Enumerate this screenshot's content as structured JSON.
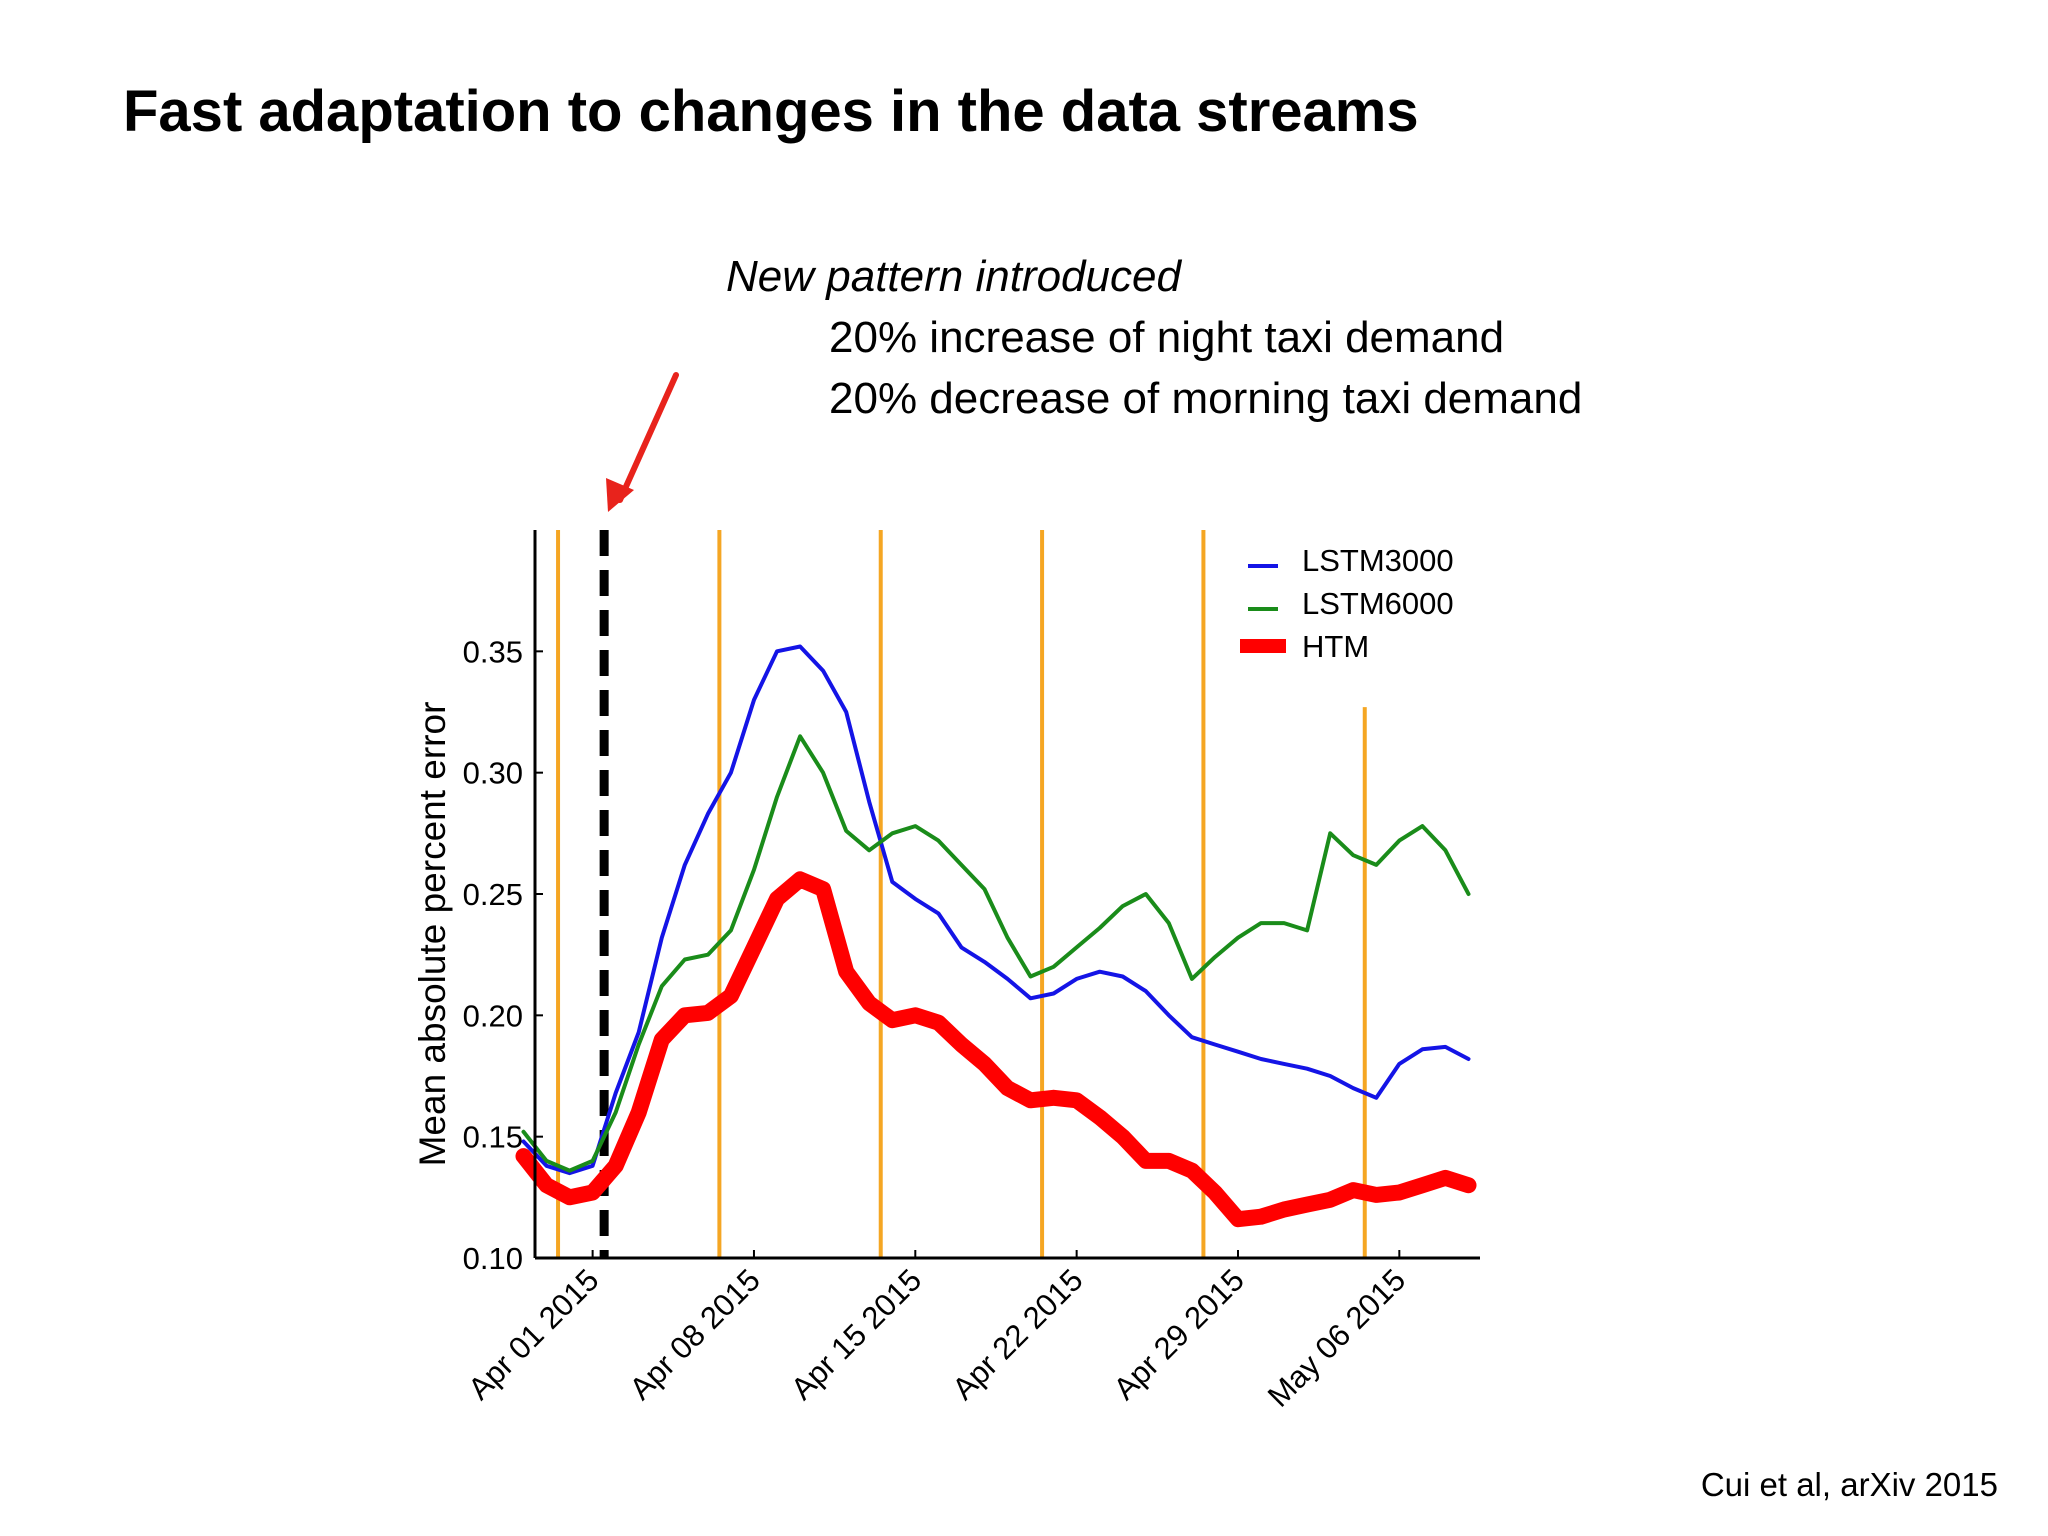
{
  "slide": {
    "title": "Fast adaptation to changes in the data streams",
    "annotation_heading": "New pattern introduced",
    "annotation_lines": [
      "20% increase of night taxi demand",
      "20% decrease of morning taxi demand"
    ],
    "citation": "Cui et al, arXiv 2015"
  },
  "chart_data": {
    "type": "line",
    "title": "",
    "xlabel": "",
    "ylabel": "Mean absolute percent error",
    "ylim": [
      0.1,
      0.4
    ],
    "xlim": [
      "2015-03-29T12:00",
      "2015-05-09T12:00"
    ],
    "x_ticks": [
      "Apr 01 2015",
      "Apr 08 2015",
      "Apr 15 2015",
      "Apr 22 2015",
      "Apr 29 2015",
      "May 06 2015"
    ],
    "x_tick_dates": [
      "2015-04-01",
      "2015-04-08",
      "2015-04-15",
      "2015-04-22",
      "2015-04-29",
      "2015-05-06"
    ],
    "y_ticks": [
      "0.10",
      "0.15",
      "0.20",
      "0.25",
      "0.30",
      "0.35"
    ],
    "y_tick_values": [
      0.1,
      0.15,
      0.2,
      0.25,
      0.3,
      0.35
    ],
    "grid": false,
    "legend_position": "top-right",
    "change_point": "2015-04-01T12:00",
    "change_point_color": "#000000",
    "weekly_markers": [
      "2015-03-30T12:00",
      "2015-04-06T12:00",
      "2015-04-13T12:00",
      "2015-04-20T12:00",
      "2015-04-27T12:00",
      "2015-05-04T12:00"
    ],
    "weekly_marker_color": "#f5a623",
    "series": [
      {
        "name": "LSTM3000",
        "color": "#1414e6",
        "x": [
          "2015-03-29",
          "2015-03-30",
          "2015-03-31",
          "2015-04-01",
          "2015-04-02",
          "2015-04-03",
          "2015-04-04",
          "2015-04-05",
          "2015-04-06",
          "2015-04-07",
          "2015-04-08",
          "2015-04-09",
          "2015-04-10",
          "2015-04-11",
          "2015-04-12",
          "2015-04-13",
          "2015-04-14",
          "2015-04-15",
          "2015-04-16",
          "2015-04-17",
          "2015-04-18",
          "2015-04-19",
          "2015-04-20",
          "2015-04-21",
          "2015-04-22",
          "2015-04-23",
          "2015-04-24",
          "2015-04-25",
          "2015-04-26",
          "2015-04-27",
          "2015-04-28",
          "2015-04-29",
          "2015-04-30",
          "2015-05-01",
          "2015-05-02",
          "2015-05-03",
          "2015-05-04",
          "2015-05-05",
          "2015-05-06",
          "2015-05-07",
          "2015-05-08",
          "2015-05-09"
        ],
        "values": [
          0.148,
          0.138,
          0.135,
          0.138,
          0.168,
          0.193,
          0.232,
          0.262,
          0.283,
          0.3,
          0.33,
          0.35,
          0.352,
          0.342,
          0.325,
          0.288,
          0.255,
          0.248,
          0.242,
          0.228,
          0.222,
          0.215,
          0.207,
          0.209,
          0.215,
          0.218,
          0.216,
          0.21,
          0.2,
          0.191,
          0.188,
          0.185,
          0.182,
          0.18,
          0.178,
          0.175,
          0.17,
          0.166,
          0.18,
          0.186,
          0.187,
          0.182
        ]
      },
      {
        "name": "LSTM6000",
        "color": "#1a8c1a",
        "x": [
          "2015-03-29",
          "2015-03-30",
          "2015-03-31",
          "2015-04-01",
          "2015-04-02",
          "2015-04-03",
          "2015-04-04",
          "2015-04-05",
          "2015-04-06",
          "2015-04-07",
          "2015-04-08",
          "2015-04-09",
          "2015-04-10",
          "2015-04-11",
          "2015-04-12",
          "2015-04-13",
          "2015-04-14",
          "2015-04-15",
          "2015-04-16",
          "2015-04-17",
          "2015-04-18",
          "2015-04-19",
          "2015-04-20",
          "2015-04-21",
          "2015-04-22",
          "2015-04-23",
          "2015-04-24",
          "2015-04-25",
          "2015-04-26",
          "2015-04-27",
          "2015-04-28",
          "2015-04-29",
          "2015-04-30",
          "2015-05-01",
          "2015-05-02",
          "2015-05-03",
          "2015-05-04",
          "2015-05-05",
          "2015-05-06",
          "2015-05-07",
          "2015-05-08",
          "2015-05-09"
        ],
        "values": [
          0.152,
          0.14,
          0.136,
          0.14,
          0.16,
          0.188,
          0.212,
          0.223,
          0.225,
          0.235,
          0.26,
          0.29,
          0.315,
          0.3,
          0.276,
          0.268,
          0.275,
          0.278,
          0.272,
          0.262,
          0.252,
          0.232,
          0.216,
          0.22,
          0.228,
          0.236,
          0.245,
          0.25,
          0.238,
          0.215,
          0.224,
          0.232,
          0.238,
          0.238,
          0.235,
          0.275,
          0.266,
          0.262,
          0.272,
          0.278,
          0.268,
          0.25
        ]
      },
      {
        "name": "HTM",
        "color": "#ff0000",
        "x": [
          "2015-03-29",
          "2015-03-30",
          "2015-03-31",
          "2015-04-01",
          "2015-04-02",
          "2015-04-03",
          "2015-04-04",
          "2015-04-05",
          "2015-04-06",
          "2015-04-07",
          "2015-04-08",
          "2015-04-09",
          "2015-04-10",
          "2015-04-11",
          "2015-04-12",
          "2015-04-13",
          "2015-04-14",
          "2015-04-15",
          "2015-04-16",
          "2015-04-17",
          "2015-04-18",
          "2015-04-19",
          "2015-04-20",
          "2015-04-21",
          "2015-04-22",
          "2015-04-23",
          "2015-04-24",
          "2015-04-25",
          "2015-04-26",
          "2015-04-27",
          "2015-04-28",
          "2015-04-29",
          "2015-04-30",
          "2015-05-01",
          "2015-05-02",
          "2015-05-03",
          "2015-05-04",
          "2015-05-05",
          "2015-05-06",
          "2015-05-07",
          "2015-05-08",
          "2015-05-09"
        ],
        "values": [
          0.142,
          0.13,
          0.125,
          0.127,
          0.138,
          0.16,
          0.19,
          0.2,
          0.201,
          0.208,
          0.228,
          0.248,
          0.256,
          0.252,
          0.218,
          0.205,
          0.198,
          0.2,
          0.197,
          0.188,
          0.18,
          0.17,
          0.165,
          0.166,
          0.165,
          0.158,
          0.15,
          0.14,
          0.14,
          0.136,
          0.127,
          0.116,
          0.117,
          0.12,
          0.122,
          0.124,
          0.128,
          0.126,
          0.127,
          0.13,
          0.133,
          0.13
        ]
      }
    ]
  }
}
